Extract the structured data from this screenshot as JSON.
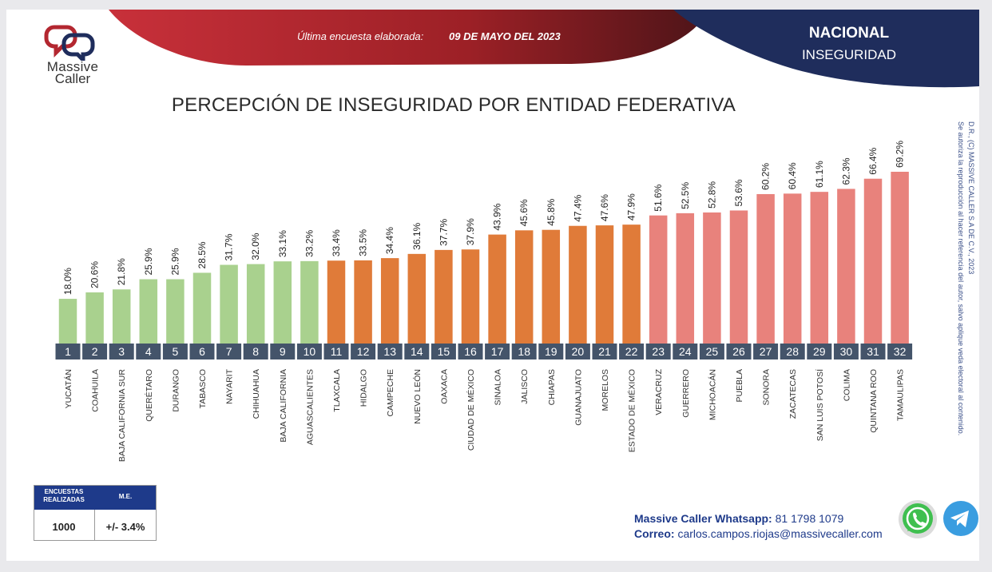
{
  "brand": {
    "name_line1": "Massive",
    "name_line2": "Caller"
  },
  "header": {
    "survey_date_label": "Última encuesta elaborada:",
    "survey_date": "09 DE MAYO DEL 2023",
    "scope_title": "NACIONAL",
    "scope_subtitle": "INSEGURIDAD"
  },
  "colors": {
    "green": "#a9d18e",
    "orange": "#e07b39",
    "red": "#e8827c",
    "rank_box": "#44546a",
    "navy": "#1e3a8a",
    "header_red": "#b32730"
  },
  "chart_data": {
    "type": "bar",
    "title": "PERCEPCIÓN DE INSEGURIDAD POR ENTIDAD FEDERATIVA",
    "categories": [
      "YUCATÁN",
      "COAHUILA",
      "BAJA CALIFORNIA SUR",
      "QUERÉTARO",
      "DURANGO",
      "TABASCO",
      "NAYARIT",
      "CHIHUAHUA",
      "BAJA CALIFORNIA",
      "AGUASCALIENTES",
      "TLAXCALA",
      "HIDALGO",
      "CAMPECHE",
      "NUEVO LEÓN",
      "OAXACA",
      "CIUDAD DE MÉXICO",
      "SINALOA",
      "JALISCO",
      "CHIAPAS",
      "GUANAJUATO",
      "MORELOS",
      "ESTADO DE MÉXICO",
      "VERACRUZ",
      "GUERRERO",
      "MICHOACÁN",
      "PUEBLA",
      "SONORA",
      "ZACATECAS",
      "SAN LUIS POTOSÍ",
      "COLIMA",
      "QUINTANA ROO",
      "TAMAULIPAS"
    ],
    "values": [
      18.0,
      20.6,
      21.8,
      25.9,
      25.9,
      28.5,
      31.7,
      32.0,
      33.1,
      33.2,
      33.4,
      33.5,
      34.4,
      36.1,
      37.7,
      37.9,
      43.9,
      45.6,
      45.8,
      47.4,
      47.6,
      47.9,
      51.6,
      52.5,
      52.8,
      53.6,
      60.2,
      60.4,
      61.1,
      62.3,
      66.4,
      69.2
    ],
    "value_labels": [
      "18.0%",
      "20.6%",
      "21.8%",
      "25.9%",
      "25.9%",
      "28.5%",
      "31.7%",
      "32.0%",
      "33.1%",
      "33.2%",
      "33.4%",
      "33.5%",
      "34.4%",
      "36.1%",
      "37.7%",
      "37.9%",
      "43.9%",
      "45.6%",
      "45.8%",
      "47.4%",
      "47.6%",
      "47.9%",
      "51.6%",
      "52.5%",
      "52.8%",
      "53.6%",
      "60.2%",
      "60.4%",
      "61.1%",
      "62.3%",
      "66.4%",
      "69.2%"
    ],
    "ranks": [
      "1",
      "2",
      "3",
      "4",
      "5",
      "6",
      "7",
      "8",
      "9",
      "10",
      "11",
      "12",
      "13",
      "14",
      "15",
      "16",
      "17",
      "18",
      "19",
      "20",
      "21",
      "22",
      "23",
      "24",
      "25",
      "26",
      "27",
      "28",
      "29",
      "30",
      "31",
      "32"
    ],
    "groups": [
      "green",
      "green",
      "green",
      "green",
      "green",
      "green",
      "green",
      "green",
      "green",
      "green",
      "orange",
      "orange",
      "orange",
      "orange",
      "orange",
      "orange",
      "orange",
      "orange",
      "orange",
      "orange",
      "orange",
      "orange",
      "red",
      "red",
      "red",
      "red",
      "red",
      "red",
      "red",
      "red",
      "red",
      "red"
    ],
    "ylim": [
      0,
      70
    ],
    "grid": false,
    "legend": "none"
  },
  "copyright": {
    "line1": "D.R., (C) MASSIVE CALLER S.A DE C.V., 2023",
    "line2": "Se autoriza la reproducción al hacer referencia del autor, salvo aplique veda electoral al contenido."
  },
  "stats": {
    "header_surveys": "ENCUESTAS REALIZADAS",
    "header_me": "M.E.",
    "surveys_value": "1000",
    "me_value": "+/- 3.4%"
  },
  "contact": {
    "whatsapp_label": "Massive Caller Whatsapp:",
    "whatsapp_number": "81 1798 1079",
    "email_label": "Correo:",
    "email": "carlos.campos.riojas@massivecaller.com"
  },
  "icons": {
    "whatsapp": "whatsapp-icon",
    "telegram": "telegram-icon",
    "logo": "massive-caller-logo-icon"
  }
}
